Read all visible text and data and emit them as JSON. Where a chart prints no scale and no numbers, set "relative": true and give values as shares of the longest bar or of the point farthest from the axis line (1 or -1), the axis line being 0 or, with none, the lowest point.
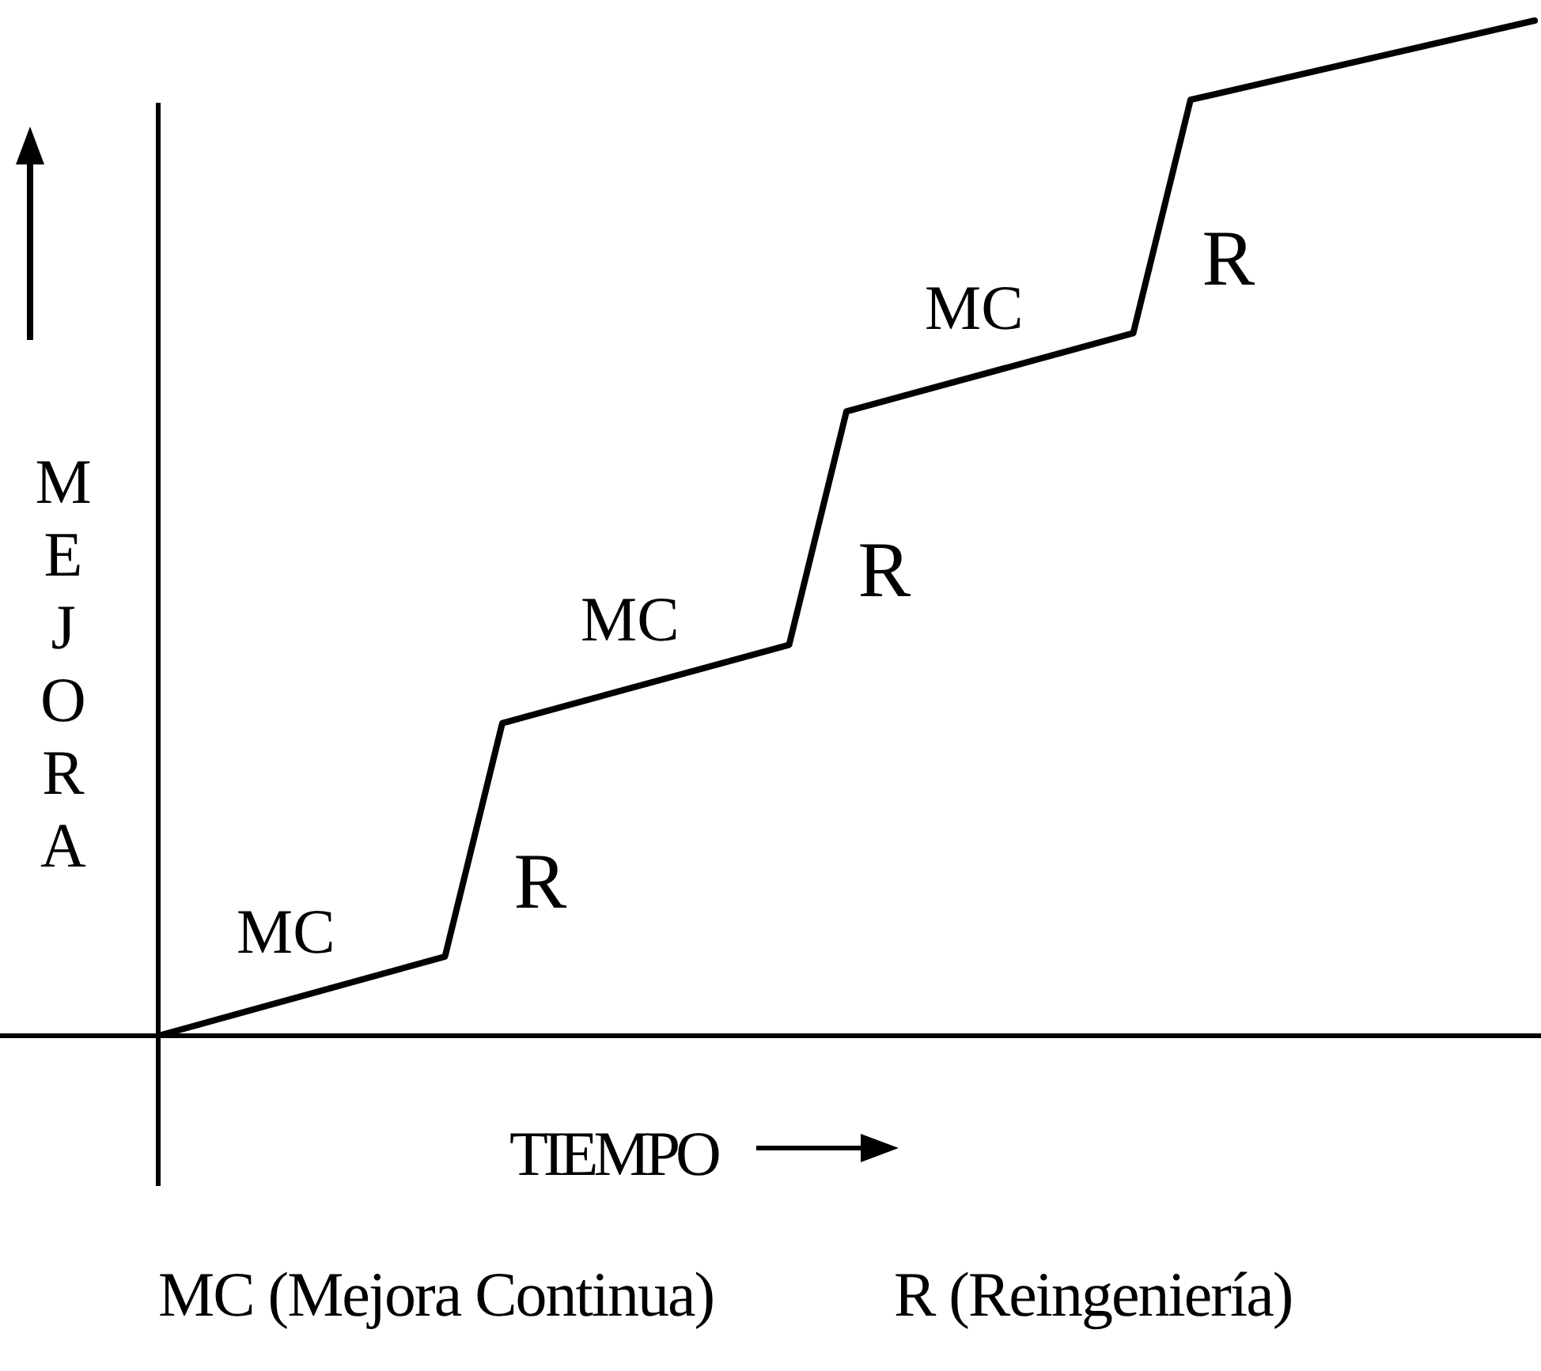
{
  "chart_data": {
    "type": "line",
    "relative": true,
    "xlabel": "TIEMPO",
    "ylabel": "MEJORA",
    "marker": "none",
    "line_style": "solid",
    "categories": [
      null,
      null,
      null,
      null,
      null,
      null,
      null,
      null,
      null,
      null,
      null,
      null,
      null,
      null,
      null,
      null,
      null,
      null,
      null,
      null,
      null,
      null,
      null,
      null,
      null
    ],
    "series": [
      {
        "color": "#000000",
        "values": [
          0,
          null,
          null,
          null,
          null,
          0.078,
          0.308,
          null,
          null,
          null,
          null,
          0.385,
          0.615,
          null,
          null,
          null,
          null,
          0.692,
          0.922,
          null,
          null,
          null,
          null,
          null,
          1
        ]
      }
    ],
    "annotations": [
      "MC",
      "R",
      "MC",
      "R",
      "MC",
      "R",
      "MC (Mejora Continua)",
      "R (Reingeniería)"
    ]
  }
}
